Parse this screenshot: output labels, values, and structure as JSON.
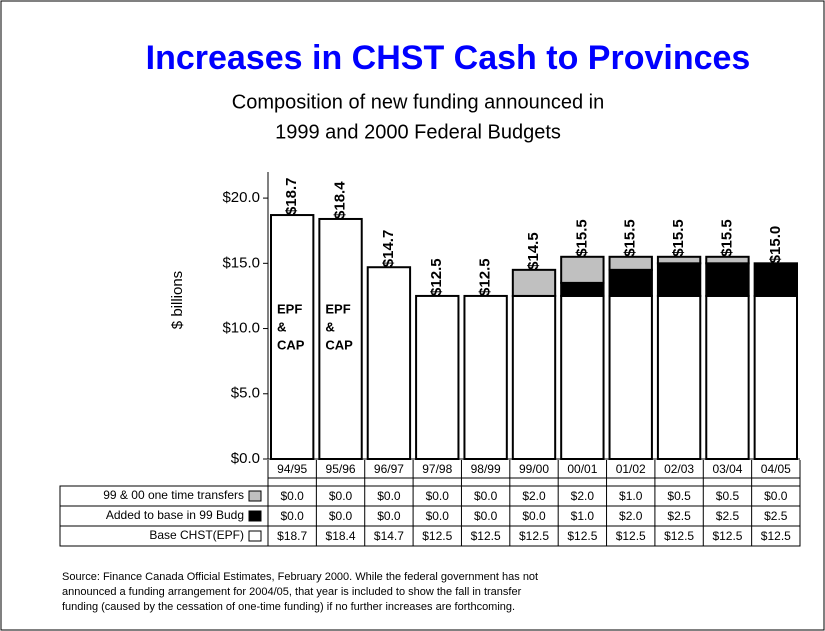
{
  "chart_data": {
    "type": "stacked_bar",
    "title": "Increases in CHST Cash to Provinces",
    "subtitle": [
      "Composition of new funding announced in",
      "1999 and 2000 Federal Budgets"
    ],
    "y_label": "$ billions",
    "categories": [
      "94/95",
      "95/96",
      "96/97",
      "97/98",
      "98/99",
      "99/00",
      "00/01",
      "01/02",
      "02/03",
      "03/04",
      "04/05"
    ],
    "series": [
      {
        "name": "Base CHST(EPF)",
        "color": "#ffffff",
        "values": [
          18.7,
          18.4,
          14.7,
          12.5,
          12.5,
          12.5,
          12.5,
          12.5,
          12.5,
          12.5,
          12.5
        ],
        "value_labels": [
          "$18.7",
          "$18.4",
          "$14.7",
          "$12.5",
          "$12.5",
          "$12.5",
          "$12.5",
          "$12.5",
          "$12.5",
          "$12.5",
          "$12.5"
        ]
      },
      {
        "name": "Added to base in 99 Budg",
        "color": "#000000",
        "values": [
          0,
          0,
          0,
          0,
          0,
          0,
          1.0,
          2.0,
          2.5,
          2.5,
          2.5
        ],
        "value_labels": [
          "$0.0",
          "$0.0",
          "$0.0",
          "$0.0",
          "$0.0",
          "$0.0",
          "$1.0",
          "$2.0",
          "$2.5",
          "$2.5",
          "$2.5"
        ]
      },
      {
        "name": "99 & 00 one time transfers",
        "color": "#c0c0c0",
        "values": [
          0,
          0,
          0,
          0,
          0,
          2.0,
          2.0,
          1.0,
          0.5,
          0.5,
          0
        ],
        "value_labels": [
          "$0.0",
          "$0.0",
          "$0.0",
          "$0.0",
          "$0.0",
          "$2.0",
          "$2.0",
          "$1.0",
          "$0.5",
          "$0.5",
          "$0.0"
        ]
      }
    ],
    "total_labels": [
      "$18.7",
      "$18.4",
      "$14.7",
      "$12.5",
      "$12.5",
      "$14.5",
      "$15.5",
      "$15.5",
      "$15.5",
      "$15.5",
      "$15.0"
    ],
    "annotations": [
      [
        "EPF",
        "&",
        "CAP"
      ],
      [
        "EPF",
        "&",
        "CAP"
      ]
    ],
    "ylim": [
      0,
      22
    ],
    "yticks": [
      {
        "value": 0,
        "label": "$0.0"
      },
      {
        "value": 5,
        "label": "$5.0"
      },
      {
        "value": 10,
        "label": "$10.0"
      },
      {
        "value": 15,
        "label": "$15.0"
      },
      {
        "value": 20,
        "label": "$20.0"
      }
    ],
    "note": [
      "Source:  Finance Canada Official Estimates, February 2000.  While the federal government has not",
      "announced a funding arrangement for 2004/05, that year is included to show the fall in transfer",
      "funding (caused by the cessation of one-time funding) if no further increases are forthcoming."
    ]
  }
}
